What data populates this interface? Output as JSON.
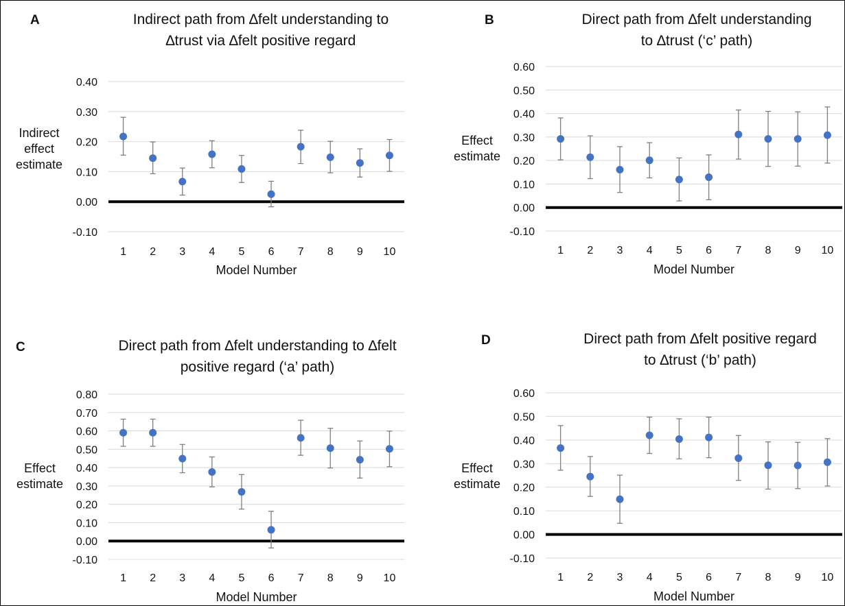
{
  "colors": {
    "point": "#4472c4",
    "error_bar": "#7f7f7f",
    "grid": "#d9d9d9",
    "zero_line": "#000000",
    "text": "#111111"
  },
  "chart_data": [
    {
      "id": "A",
      "type": "scatter",
      "panel_letter": "A",
      "title": "Indirect path from ∆felt understanding to ∆trust via ∆felt positive regard",
      "title_lines": [
        "Indirect path from ∆felt understanding to",
        "∆trust via ∆felt positive regard"
      ],
      "xlabel": "Model Number",
      "ylabel": "Indirect effect estimate",
      "ylabel_lines": [
        "Indirect",
        "effect",
        "estimate"
      ],
      "x": [
        1,
        2,
        3,
        4,
        5,
        6,
        7,
        8,
        9,
        10
      ],
      "y": [
        0.217,
        0.145,
        0.067,
        0.158,
        0.109,
        0.025,
        0.183,
        0.148,
        0.129,
        0.154
      ],
      "lower": [
        0.155,
        0.093,
        0.022,
        0.113,
        0.064,
        -0.017,
        0.127,
        0.096,
        0.082,
        0.101
      ],
      "upper": [
        0.281,
        0.199,
        0.112,
        0.203,
        0.154,
        0.068,
        0.238,
        0.201,
        0.176,
        0.207
      ],
      "ylim": [
        -0.1,
        0.4
      ],
      "yticks": [
        "-0.10",
        "0.00",
        "0.10",
        "0.20",
        "0.30",
        "0.40"
      ],
      "xticks": [
        "1",
        "2",
        "3",
        "4",
        "5",
        "6",
        "7",
        "8",
        "9",
        "10"
      ],
      "grid": "horizontal",
      "reference_line": 0
    },
    {
      "id": "B",
      "type": "scatter",
      "panel_letter": "B",
      "title": "Direct path from ∆felt understanding to ∆trust (‘c’ path)",
      "title_lines": [
        "Direct path from ∆felt understanding",
        "to ∆trust (‘c’ path)"
      ],
      "xlabel": "Model Number",
      "ylabel": "Effect estimate",
      "ylabel_lines": [
        "Effect",
        "estimate"
      ],
      "x": [
        1,
        2,
        3,
        4,
        5,
        6,
        7,
        8,
        9,
        10
      ],
      "y": [
        0.292,
        0.214,
        0.161,
        0.201,
        0.119,
        0.129,
        0.311,
        0.292,
        0.292,
        0.308
      ],
      "lower": [
        0.203,
        0.123,
        0.064,
        0.126,
        0.028,
        0.033,
        0.206,
        0.175,
        0.176,
        0.189
      ],
      "upper": [
        0.381,
        0.305,
        0.259,
        0.276,
        0.211,
        0.224,
        0.415,
        0.409,
        0.407,
        0.428
      ],
      "ylim": [
        -0.1,
        0.6
      ],
      "yticks": [
        "-0.10",
        "0.00",
        "0.10",
        "0.20",
        "0.30",
        "0.40",
        "0.50",
        "0.60"
      ],
      "xticks": [
        "1",
        "2",
        "3",
        "4",
        "5",
        "6",
        "7",
        "8",
        "9",
        "10"
      ],
      "grid": "horizontal",
      "reference_line": 0
    },
    {
      "id": "C",
      "type": "scatter",
      "panel_letter": "C",
      "title": "Direct path from ∆felt understanding to ∆felt positive regard (‘a’ path)",
      "title_lines": [
        "Direct path from ∆felt understanding to ∆felt",
        "positive regard (‘a’ path)"
      ],
      "xlabel": "Model Number",
      "ylabel": "Effect estimate",
      "ylabel_lines": [
        "Effect",
        "estimate"
      ],
      "x": [
        1,
        2,
        3,
        4,
        5,
        6,
        7,
        8,
        9,
        10
      ],
      "y": [
        0.59,
        0.59,
        0.449,
        0.376,
        0.268,
        0.061,
        0.562,
        0.506,
        0.443,
        0.502
      ],
      "lower": [
        0.516,
        0.516,
        0.372,
        0.295,
        0.174,
        -0.038,
        0.467,
        0.398,
        0.343,
        0.405
      ],
      "upper": [
        0.664,
        0.664,
        0.526,
        0.458,
        0.362,
        0.162,
        0.658,
        0.614,
        0.545,
        0.599
      ],
      "ylim": [
        -0.1,
        0.8
      ],
      "yticks": [
        "-0.10",
        "0.00",
        "0.10",
        "0.20",
        "0.30",
        "0.40",
        "0.50",
        "0.60",
        "0.70",
        "0.80"
      ],
      "xticks": [
        "1",
        "2",
        "3",
        "4",
        "5",
        "6",
        "7",
        "8",
        "9",
        "10"
      ],
      "grid": "horizontal",
      "reference_line": 0
    },
    {
      "id": "D",
      "type": "scatter",
      "panel_letter": "D",
      "title": "Direct path from ∆felt positive regard to ∆trust (‘b’ path)",
      "title_lines": [
        "Direct path from ∆felt positive regard",
        "to ∆trust (‘b’ path)"
      ],
      "xlabel": "Model Number",
      "ylabel": "Effect estimate",
      "ylabel_lines": [
        "Effect",
        "estimate"
      ],
      "x": [
        1,
        2,
        3,
        4,
        5,
        6,
        7,
        8,
        9,
        10
      ],
      "y": [
        0.366,
        0.245,
        0.149,
        0.42,
        0.404,
        0.411,
        0.323,
        0.293,
        0.292,
        0.306
      ],
      "lower": [
        0.272,
        0.161,
        0.047,
        0.343,
        0.32,
        0.325,
        0.229,
        0.192,
        0.194,
        0.205
      ],
      "upper": [
        0.461,
        0.33,
        0.251,
        0.497,
        0.49,
        0.497,
        0.419,
        0.392,
        0.39,
        0.406
      ],
      "ylim": [
        -0.1,
        0.6
      ],
      "yticks": [
        "-0.10",
        "0.00",
        "0.10",
        "0.20",
        "0.30",
        "0.40",
        "0.50",
        "0.60"
      ],
      "xticks": [
        "1",
        "2",
        "3",
        "4",
        "5",
        "6",
        "7",
        "8",
        "9",
        "10"
      ],
      "grid": "horizontal",
      "reference_line": 0
    }
  ]
}
